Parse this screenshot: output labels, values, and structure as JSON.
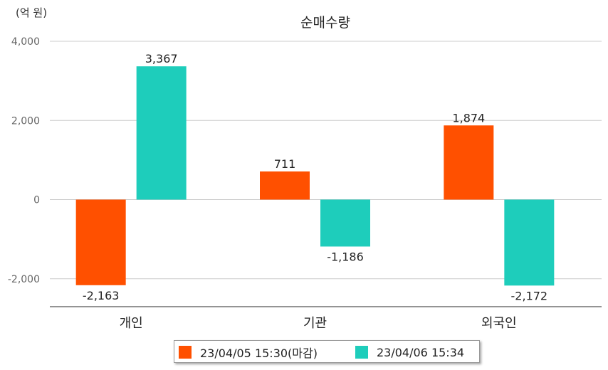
{
  "chart_data": {
    "type": "bar",
    "title": "순매수량",
    "unit_label": "(억 원)",
    "categories": [
      "개인",
      "기관",
      "외국인"
    ],
    "series": [
      {
        "name": "23/04/05 15:30(마감)",
        "color": "#FF5000",
        "values": [
          -2163,
          711,
          1874
        ],
        "labels": [
          "-2,163",
          "711",
          "1,874"
        ]
      },
      {
        "name": "23/04/06 15:34",
        "color": "#1ECDBB",
        "values": [
          3367,
          -1186,
          -2172
        ],
        "labels": [
          "3,367",
          "-1,186",
          "-2,172"
        ]
      }
    ],
    "y_ticks": [
      4000,
      2000,
      0,
      -2000
    ],
    "y_tick_labels": [
      "4,000",
      "2,000",
      "0",
      "-2,000"
    ],
    "ylim": [
      -2700,
      4000
    ],
    "grid": true,
    "legend_position": "bottom"
  }
}
